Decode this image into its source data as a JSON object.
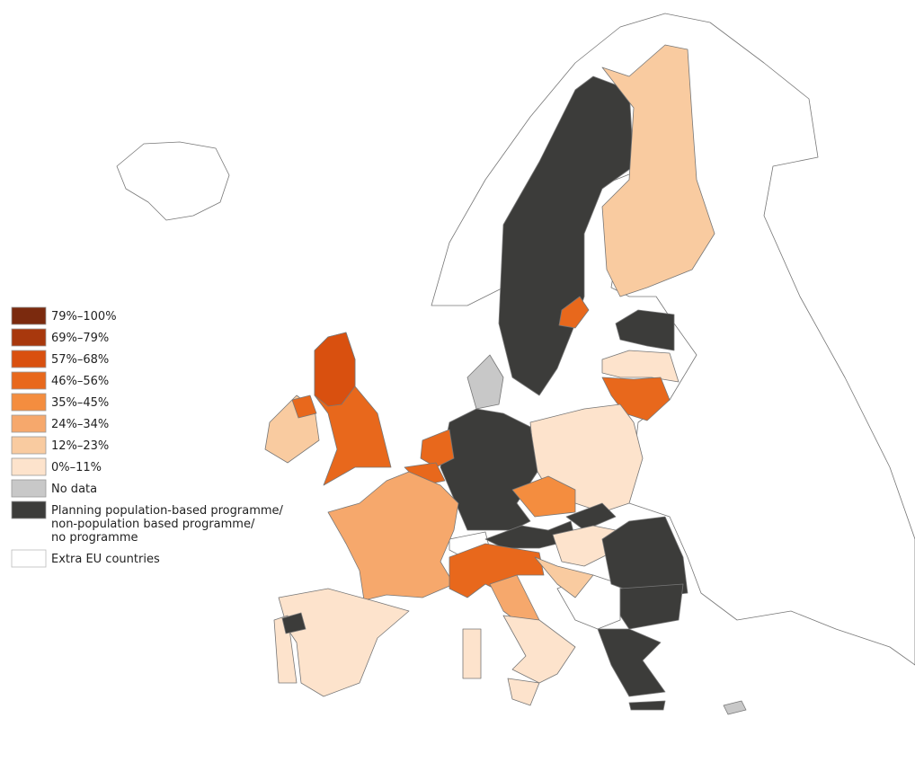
{
  "legend": {
    "items": [
      {
        "lines": [
          "79%–100%"
        ],
        "color": "#7b2a0e"
      },
      {
        "lines": [
          "69%–79%"
        ],
        "color": "#a8380d"
      },
      {
        "lines": [
          "57%–68%"
        ],
        "color": "#d9500f"
      },
      {
        "lines": [
          "46%–56%"
        ],
        "color": "#e8681c"
      },
      {
        "lines": [
          "35%–45%"
        ],
        "color": "#f48d3f"
      },
      {
        "lines": [
          "24%–34%"
        ],
        "color": "#f6a86c"
      },
      {
        "lines": [
          "12%–23%"
        ],
        "color": "#f9cba0"
      },
      {
        "lines": [
          "0%–11%"
        ],
        "color": "#fde3cc"
      },
      {
        "lines": [
          "No data"
        ],
        "color": "#c8c8c8"
      },
      {
        "lines": [
          "Planning population-based programme/",
          "non-population based programme/",
          "no programme"
        ],
        "color": "#3c3c3a"
      },
      {
        "lines": [
          "Extra EU countries"
        ],
        "color": "#ffffff"
      }
    ]
  }
}
